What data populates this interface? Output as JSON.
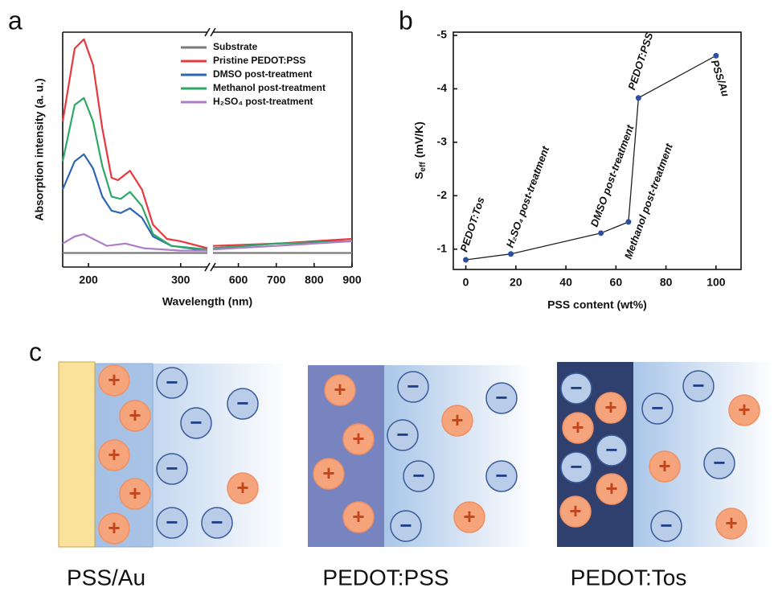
{
  "panels": [
    "a",
    "b",
    "c"
  ],
  "chart_data": [
    {
      "type": "line",
      "xlabel": "Wavelength (nm)",
      "ylabel": "Absorption intensity (a. u.)",
      "xlim": [
        172,
        900
      ],
      "xbreak": [
        329,
        533
      ],
      "xticks": [
        200,
        300,
        600,
        700,
        800,
        900
      ],
      "ylim": [
        0,
        1
      ],
      "series": [
        {
          "name": "Substrate",
          "color": "#7a7a7a",
          "x": [
            172,
            250,
            329,
            533,
            700,
            900
          ],
          "values": [
            0.06,
            0.06,
            0.06,
            0.06,
            0.06,
            0.06
          ]
        },
        {
          "name": "Pristine PEDOT:PSS",
          "color": "#e8383d",
          "x": [
            172,
            185,
            195,
            205,
            215,
            225,
            232,
            245,
            258,
            270,
            285,
            300,
            329,
            533,
            700,
            900
          ],
          "values": [
            0.62,
            0.93,
            0.97,
            0.86,
            0.59,
            0.38,
            0.37,
            0.41,
            0.33,
            0.18,
            0.12,
            0.11,
            0.08,
            0.09,
            0.1,
            0.12
          ]
        },
        {
          "name": "DMSO post-treatment",
          "color": "#2e67b1",
          "x": [
            172,
            185,
            195,
            205,
            215,
            225,
            235,
            245,
            258,
            270,
            290,
            329,
            533,
            700,
            900
          ],
          "values": [
            0.33,
            0.45,
            0.48,
            0.42,
            0.3,
            0.24,
            0.23,
            0.25,
            0.21,
            0.13,
            0.09,
            0.07,
            0.08,
            0.1,
            0.11
          ]
        },
        {
          "name": "Methanol post-treatment",
          "color": "#2fa866",
          "x": [
            172,
            185,
            195,
            205,
            215,
            225,
            235,
            245,
            258,
            270,
            290,
            329,
            533,
            700,
            900
          ],
          "values": [
            0.45,
            0.69,
            0.72,
            0.62,
            0.43,
            0.3,
            0.29,
            0.32,
            0.26,
            0.14,
            0.09,
            0.075,
            0.08,
            0.1,
            0.11
          ]
        },
        {
          "name": "H₂SO₄ post-treatment",
          "color": "#b07cc6",
          "x": [
            172,
            185,
            195,
            205,
            220,
            240,
            260,
            300,
            329,
            533,
            700,
            900
          ],
          "values": [
            0.1,
            0.13,
            0.14,
            0.12,
            0.09,
            0.1,
            0.08,
            0.07,
            0.07,
            0.075,
            0.09,
            0.11
          ]
        }
      ]
    },
    {
      "type": "scatter",
      "xlabel": "PSS content (wt%)",
      "ylabel": [
        "S",
        "eff",
        "(mV/K)"
      ],
      "xlim": [
        -5,
        110
      ],
      "xticks": [
        0,
        20,
        40,
        60,
        80,
        100
      ],
      "ylim": [
        -0.62,
        -5.06
      ],
      "yticks": [
        -5,
        -4,
        -3,
        -2,
        -1
      ],
      "color": "#2d4fa0",
      "line_color": "#222222",
      "x": [
        0,
        18,
        54,
        65,
        69,
        100
      ],
      "values": [
        -0.8,
        -0.91,
        -1.3,
        -1.51,
        -3.83,
        -4.62
      ],
      "point_labels": [
        "PEDOT:Tos",
        "H₂SO₄ post-treatment",
        "DMSO post-treatment",
        "Methanol post-treatment",
        "PEDOT:PSS",
        "PSS/Au"
      ]
    }
  ],
  "diagram": {
    "signs": {
      "positive": "+",
      "negative": "−"
    },
    "captions": [
      "PSS/Au",
      "PEDOT:PSS",
      "PEDOT:Tos"
    ]
  }
}
